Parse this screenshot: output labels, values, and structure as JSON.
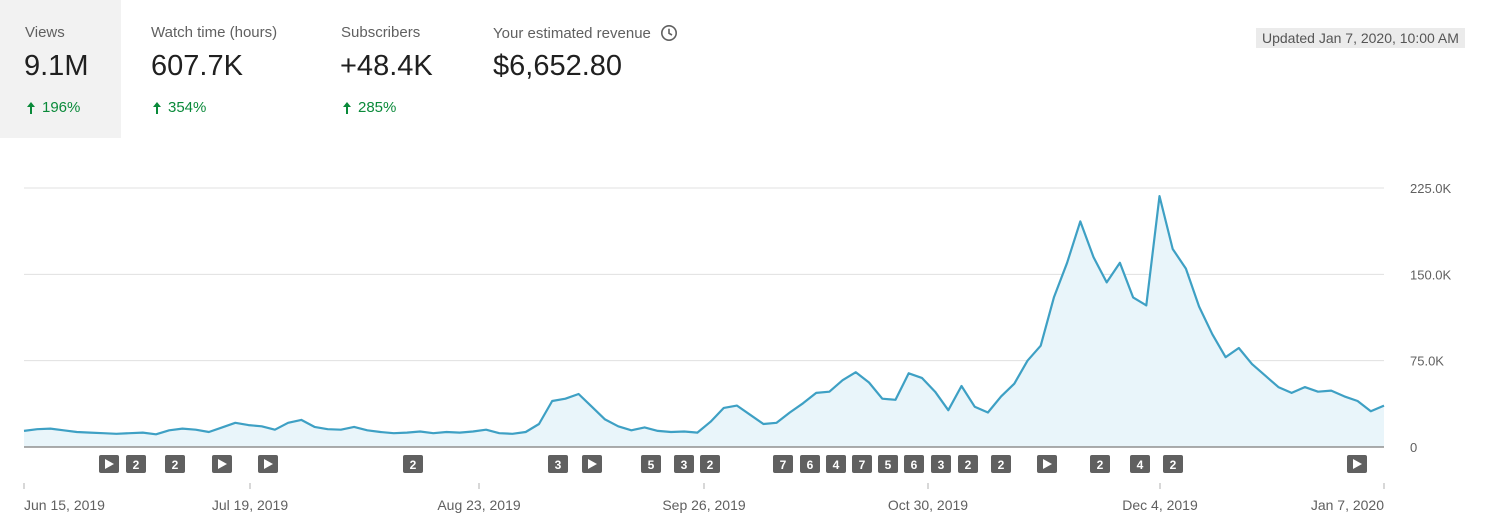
{
  "metrics": [
    {
      "label": "Views",
      "value": "9.1M",
      "delta": "196%",
      "active": true
    },
    {
      "label": "Watch time (hours)",
      "value": "607.7K",
      "delta": "354%",
      "active": false
    },
    {
      "label": "Subscribers",
      "value": "+48.4K",
      "delta": "285%",
      "active": false
    },
    {
      "label": "Your estimated revenue",
      "value": "$6,652.80",
      "delta": "",
      "active": false,
      "icon": "clock-icon"
    }
  ],
  "updated": "Updated Jan 7, 2020, 10:00 AM",
  "colors": {
    "line": "#3ea0c4",
    "fill": "#e9f5fa",
    "grid": "#e0e0e0",
    "up": "#0a8a3a",
    "marker": "#606060"
  },
  "chart_data": {
    "type": "area",
    "series_metric": "Views",
    "x_start": "2019-06-15",
    "x_end": "2020-01-07",
    "xtick_labels": [
      "Jun 15, 2019",
      "Jul 19, 2019",
      "Aug 23, 2019",
      "Sep 26, 2019",
      "Oct 30, 2019",
      "Dec 4, 2019",
      "Jan 7, 2020"
    ],
    "ytick_labels": [
      "0",
      "75.0K",
      "150.0K",
      "225.0K"
    ],
    "ylim": [
      0,
      225000
    ],
    "y_axis_position": "right",
    "grid": true,
    "points": [
      [
        "2019-06-15",
        14000
      ],
      [
        "2019-06-17",
        15500
      ],
      [
        "2019-06-19",
        16000
      ],
      [
        "2019-06-21",
        14500
      ],
      [
        "2019-06-23",
        13000
      ],
      [
        "2019-06-25",
        12500
      ],
      [
        "2019-06-27",
        12000
      ],
      [
        "2019-06-29",
        11500
      ],
      [
        "2019-07-01",
        12000
      ],
      [
        "2019-07-03",
        12500
      ],
      [
        "2019-07-05",
        11000
      ],
      [
        "2019-07-07",
        14500
      ],
      [
        "2019-07-09",
        16000
      ],
      [
        "2019-07-11",
        15000
      ],
      [
        "2019-07-13",
        13000
      ],
      [
        "2019-07-15",
        17000
      ],
      [
        "2019-07-17",
        21000
      ],
      [
        "2019-07-19",
        19000
      ],
      [
        "2019-07-21",
        18000
      ],
      [
        "2019-07-23",
        15000
      ],
      [
        "2019-07-25",
        21000
      ],
      [
        "2019-07-27",
        23500
      ],
      [
        "2019-07-29",
        17500
      ],
      [
        "2019-07-31",
        15500
      ],
      [
        "2019-08-02",
        15000
      ],
      [
        "2019-08-04",
        17500
      ],
      [
        "2019-08-06",
        14500
      ],
      [
        "2019-08-08",
        13000
      ],
      [
        "2019-08-10",
        12000
      ],
      [
        "2019-08-12",
        12500
      ],
      [
        "2019-08-14",
        13500
      ],
      [
        "2019-08-16",
        12000
      ],
      [
        "2019-08-18",
        13000
      ],
      [
        "2019-08-20",
        12500
      ],
      [
        "2019-08-22",
        13500
      ],
      [
        "2019-08-24",
        15000
      ],
      [
        "2019-08-26",
        12000
      ],
      [
        "2019-08-28",
        11500
      ],
      [
        "2019-08-30",
        13000
      ],
      [
        "2019-09-01",
        20000
      ],
      [
        "2019-09-03",
        40000
      ],
      [
        "2019-09-05",
        42000
      ],
      [
        "2019-09-07",
        46000
      ],
      [
        "2019-09-09",
        35000
      ],
      [
        "2019-09-11",
        24000
      ],
      [
        "2019-09-13",
        18000
      ],
      [
        "2019-09-15",
        14500
      ],
      [
        "2019-09-17",
        17000
      ],
      [
        "2019-09-19",
        14000
      ],
      [
        "2019-09-21",
        13000
      ],
      [
        "2019-09-23",
        13500
      ],
      [
        "2019-09-25",
        12500
      ],
      [
        "2019-09-27",
        22000
      ],
      [
        "2019-09-29",
        34000
      ],
      [
        "2019-10-01",
        36000
      ],
      [
        "2019-10-03",
        28000
      ],
      [
        "2019-10-05",
        20000
      ],
      [
        "2019-10-07",
        21000
      ],
      [
        "2019-10-09",
        30000
      ],
      [
        "2019-10-11",
        38000
      ],
      [
        "2019-10-13",
        47000
      ],
      [
        "2019-10-15",
        48000
      ],
      [
        "2019-10-17",
        58000
      ],
      [
        "2019-10-19",
        65000
      ],
      [
        "2019-10-21",
        56000
      ],
      [
        "2019-10-23",
        42000
      ],
      [
        "2019-10-25",
        41000
      ],
      [
        "2019-10-27",
        64000
      ],
      [
        "2019-10-29",
        60000
      ],
      [
        "2019-10-31",
        48000
      ],
      [
        "2019-11-02",
        32000
      ],
      [
        "2019-11-04",
        53000
      ],
      [
        "2019-11-06",
        35000
      ],
      [
        "2019-11-08",
        30000
      ],
      [
        "2019-11-10",
        44000
      ],
      [
        "2019-11-12",
        55000
      ],
      [
        "2019-11-14",
        75000
      ],
      [
        "2019-11-16",
        88000
      ],
      [
        "2019-11-18",
        130000
      ],
      [
        "2019-11-20",
        160000
      ],
      [
        "2019-11-22",
        196000
      ],
      [
        "2019-11-24",
        165000
      ],
      [
        "2019-11-26",
        143000
      ],
      [
        "2019-11-28",
        160000
      ],
      [
        "2019-11-30",
        130000
      ],
      [
        "2019-12-02",
        123000
      ],
      [
        "2019-12-04",
        218000
      ],
      [
        "2019-12-06",
        172000
      ],
      [
        "2019-12-08",
        155000
      ],
      [
        "2019-12-10",
        122000
      ],
      [
        "2019-12-12",
        98000
      ],
      [
        "2019-12-14",
        78000
      ],
      [
        "2019-12-16",
        86000
      ],
      [
        "2019-12-18",
        72000
      ],
      [
        "2019-12-20",
        62000
      ],
      [
        "2019-12-22",
        52000
      ],
      [
        "2019-12-24",
        47000
      ],
      [
        "2019-12-26",
        52000
      ],
      [
        "2019-12-28",
        48000
      ],
      [
        "2019-12-30",
        49000
      ],
      [
        "2020-01-01",
        44000
      ],
      [
        "2020-01-03",
        40000
      ],
      [
        "2020-01-05",
        31000
      ],
      [
        "2020-01-07",
        36000
      ]
    ],
    "marker_labels": [
      "▶",
      "2",
      "2",
      "▶",
      "▶",
      "2",
      "3",
      "▶",
      "5",
      "3",
      "2",
      "7",
      "6",
      "4",
      "7",
      "5",
      "6",
      "3",
      "2",
      "2",
      "▶",
      "2",
      "4",
      "2",
      "▶"
    ]
  }
}
